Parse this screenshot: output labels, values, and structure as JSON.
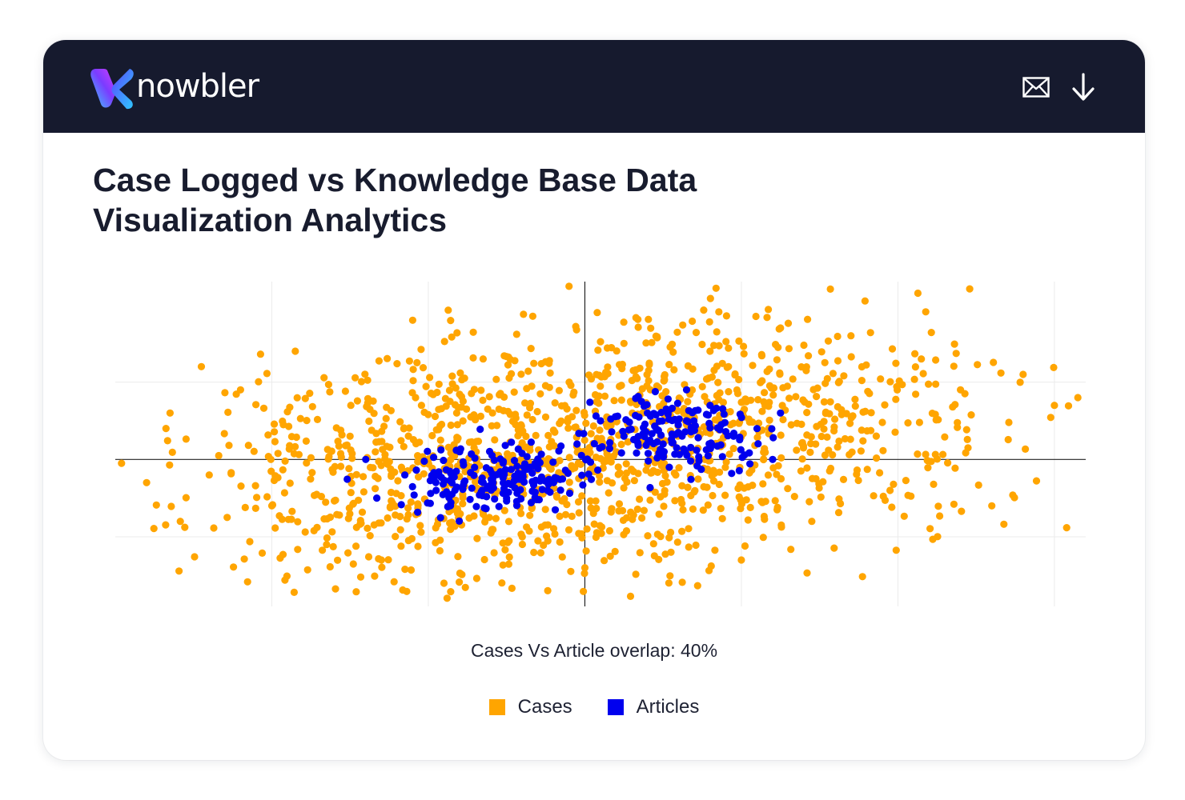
{
  "header": {
    "logo_text": "nowbler",
    "logo_icon": "knowbler-k-icon",
    "actions": [
      {
        "icon": "envelope-icon",
        "label": "Email"
      },
      {
        "icon": "download-arrow-icon",
        "label": "Download"
      }
    ],
    "background": "#161a2e"
  },
  "title": "Case Logged vs Knowledge Base Data Visualization Analytics",
  "overlap_text": "Cases Vs Article overlap: 40%",
  "colors": {
    "cases": "#ffa500",
    "articles": "#0000ee",
    "axis": "#222222",
    "grid": "#ebebeb",
    "logo_gradient": [
      "#3ad1ff",
      "#7a3cff",
      "#d63bff"
    ]
  },
  "legend": [
    {
      "label": "Cases",
      "color": "#ffa500"
    },
    {
      "label": "Articles",
      "color": "#0000ee"
    }
  ],
  "chart_data": {
    "type": "scatter",
    "title": "",
    "xlabel": "",
    "ylabel": "",
    "xlim": [
      -6,
      6.4
    ],
    "ylim": [
      -1.9,
      2.3
    ],
    "grid": true,
    "axis_ticks_visible": false,
    "legend_position": "bottom-center",
    "series": [
      {
        "name": "Cases",
        "color": "#ffa500",
        "approx_count": 1400,
        "distribution": "two overlapping clusters centered near (-1.4, -0.25) and (1.6, 0.45), spread sx≈1.8, sy≈0.75",
        "points": [
          [
            -5.6,
            -0.3
          ],
          [
            -5.3,
            0.6
          ],
          [
            -4.9,
            1.2
          ],
          [
            -4.8,
            -0.2
          ],
          [
            -4.4,
            0.9
          ],
          [
            -4.0,
            -0.6
          ],
          [
            -3.7,
            1.4
          ],
          [
            -3.3,
            -1.1
          ],
          [
            -3.0,
            0.3
          ],
          [
            -2.6,
            -1.3
          ],
          [
            -2.2,
            1.8
          ],
          [
            -1.8,
            -1.6
          ],
          [
            -1.3,
            1.3
          ],
          [
            -0.8,
            -1.0
          ],
          [
            -0.2,
            1.0
          ],
          [
            0.0,
            -1.4
          ],
          [
            0.5,
            1.5
          ],
          [
            1.1,
            -1.2
          ],
          [
            1.6,
            1.4
          ],
          [
            2.0,
            -1.3
          ],
          [
            2.5,
            1.7
          ],
          [
            2.9,
            -0.8
          ],
          [
            3.4,
            1.6
          ],
          [
            3.9,
            -0.4
          ],
          [
            4.3,
            1.3
          ],
          [
            4.8,
            0.9
          ],
          [
            5.2,
            -0.6
          ],
          [
            5.6,
            1.1
          ],
          [
            6.0,
            0.7
          ],
          [
            6.3,
            0.8
          ]
        ]
      },
      {
        "name": "Articles",
        "color": "#0000ee",
        "approx_count": 330,
        "distribution": "two dense clusters centered near (-1.2, -0.25) and (1.1, 0.35), spread sx≈0.6, sy≈0.22",
        "points": [
          [
            -2.8,
            0.0
          ],
          [
            -2.3,
            -0.2
          ],
          [
            -1.9,
            -0.4
          ],
          [
            -1.6,
            0.1
          ],
          [
            -1.3,
            -0.3
          ],
          [
            -1.0,
            -0.5
          ],
          [
            -0.7,
            -0.1
          ],
          [
            -0.4,
            -0.3
          ],
          [
            -0.1,
            0.2
          ],
          [
            0.2,
            0.5
          ],
          [
            0.5,
            0.3
          ],
          [
            0.8,
            0.6
          ],
          [
            1.0,
            0.2
          ],
          [
            1.3,
            0.5
          ],
          [
            1.6,
            0.7
          ],
          [
            1.9,
            0.3
          ],
          [
            2.2,
            0.4
          ],
          [
            2.5,
            0.6
          ],
          [
            2.4,
            0.0
          ],
          [
            1.3,
            0.9
          ]
        ]
      }
    ]
  }
}
